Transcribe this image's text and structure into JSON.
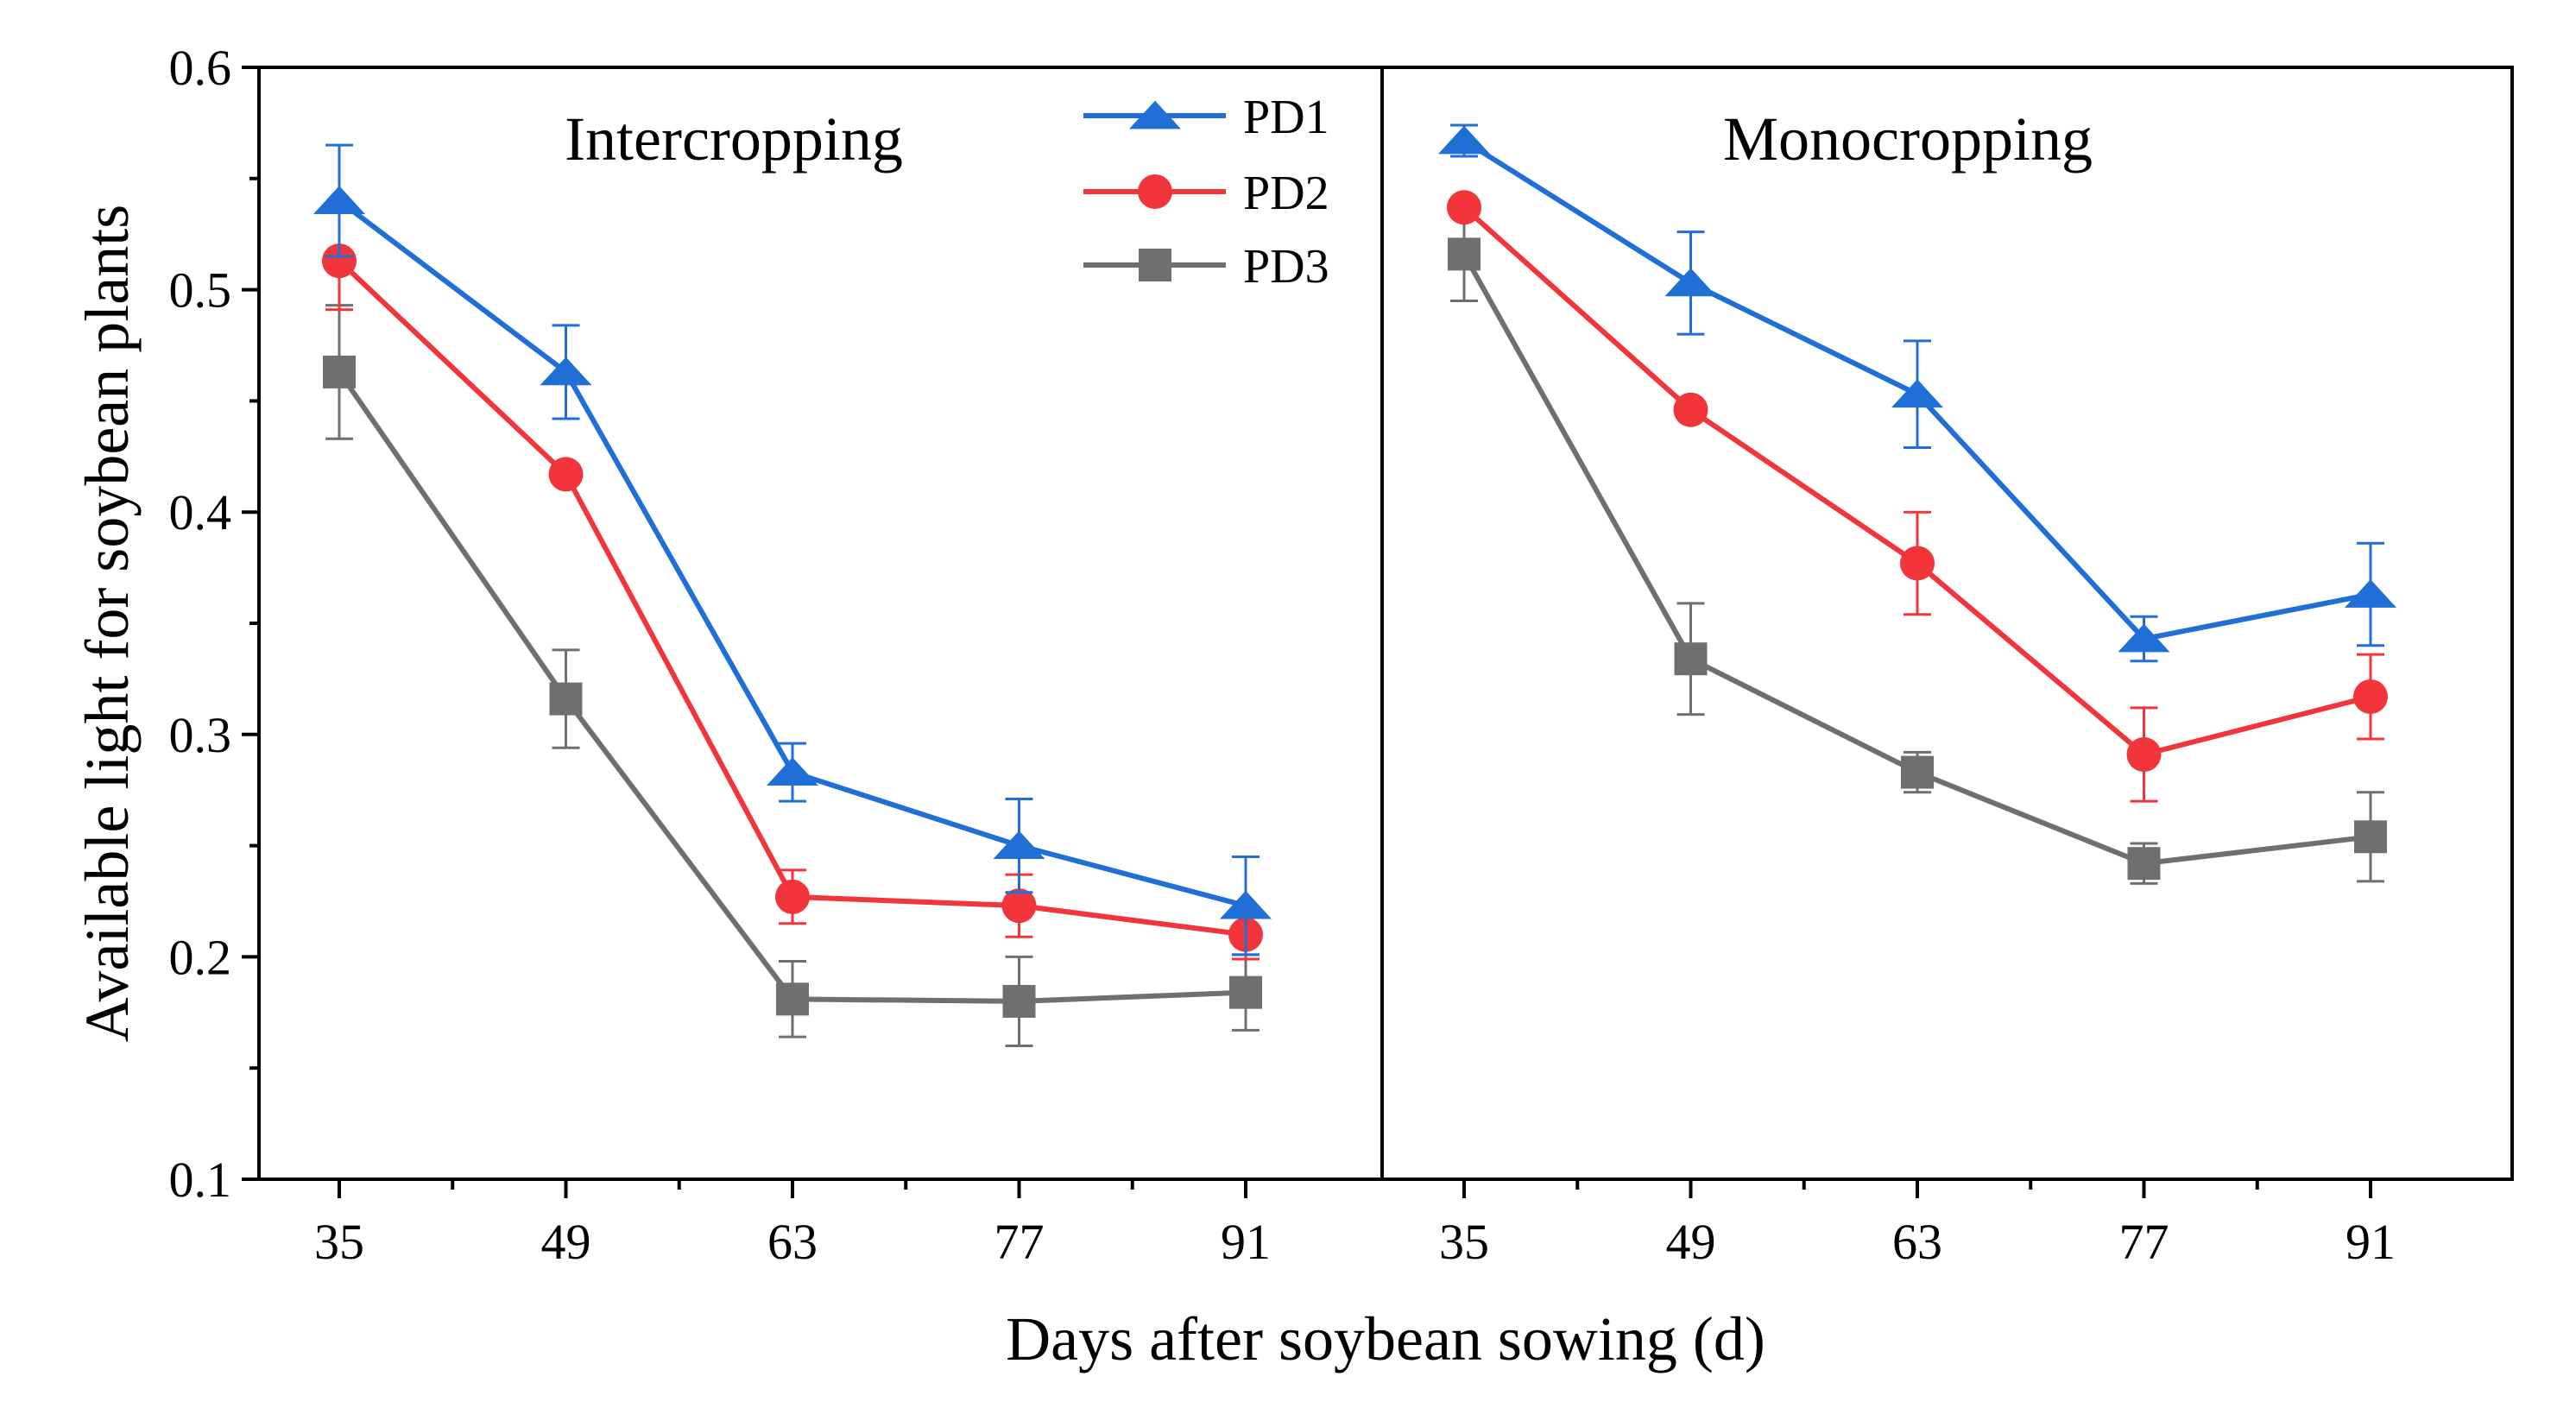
{
  "chart_data": {
    "type": "line",
    "xlabel": "Days after soybean sowing (d)",
    "ylabel": "Available light  for soybean plants",
    "ylim": [
      0.1,
      0.6
    ],
    "yticks": [
      "0.1",
      "0.2",
      "0.3",
      "0.4",
      "0.5",
      "0.6"
    ],
    "categories": [
      "35",
      "49",
      "63",
      "77",
      "91"
    ],
    "legend_position": "top, inside left panel near divider",
    "colors": {
      "PD1": "#1f6fd6",
      "PD2": "#f2353a",
      "PD3": "#6f6f6f"
    },
    "panels": [
      {
        "title": "Intercropping",
        "series": [
          {
            "name": "PD1",
            "marker": "triangle",
            "values": [
              0.54,
              0.463,
              0.283,
              0.25,
              0.223
            ],
            "errors": [
              0.025,
              0.021,
              0.013,
              0.021,
              0.022
            ]
          },
          {
            "name": "PD2",
            "marker": "circle",
            "values": [
              0.513,
              0.417,
              0.227,
              0.223,
              0.21
            ],
            "errors": [
              0.022,
              0.004,
              0.012,
              0.014,
              0.011
            ]
          },
          {
            "name": "PD3",
            "marker": "square",
            "values": [
              0.463,
              0.316,
              0.181,
              0.18,
              0.184
            ],
            "errors": [
              0.03,
              0.022,
              0.017,
              0.02,
              0.017
            ]
          }
        ]
      },
      {
        "title": "Monocropping",
        "series": [
          {
            "name": "PD1",
            "marker": "triangle",
            "values": [
              0.567,
              0.503,
              0.453,
              0.343,
              0.363
            ],
            "errors": [
              0.007,
              0.023,
              0.024,
              0.01,
              0.023
            ]
          },
          {
            "name": "PD2",
            "marker": "circle",
            "values": [
              0.537,
              0.446,
              0.377,
              0.291,
              0.317
            ],
            "errors": [
              0.004,
              0.004,
              0.023,
              0.021,
              0.019
            ]
          },
          {
            "name": "PD3",
            "marker": "square",
            "values": [
              0.516,
              0.334,
              0.283,
              0.242,
              0.254
            ],
            "errors": [
              0.021,
              0.025,
              0.009,
              0.009,
              0.02
            ]
          }
        ]
      }
    ]
  }
}
